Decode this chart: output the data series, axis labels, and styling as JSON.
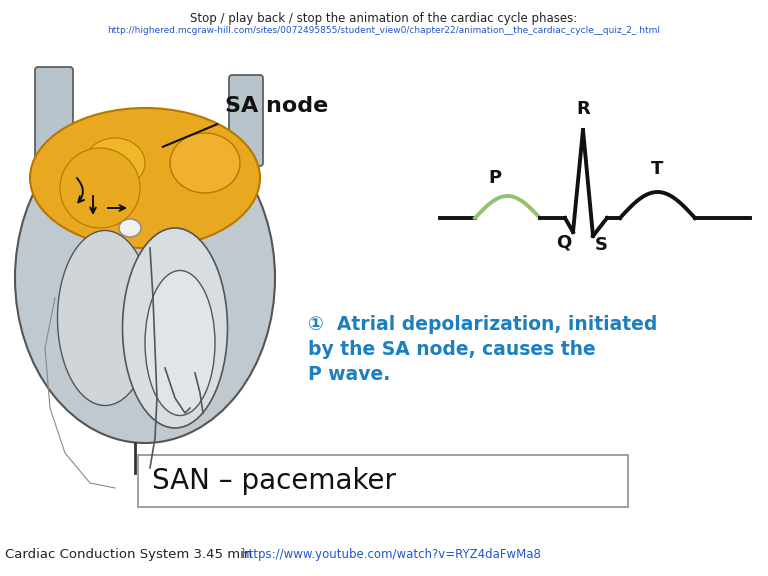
{
  "background_color": "#ffffff",
  "top_text": "Stop / play back / stop the animation of the cardiac cycle phases:",
  "top_link": "http://highered.mcgraw-hill.com/sites/0072495855/student_view0/chapter22/animation__the_cardiac_cycle__quiz_2_.html",
  "title_main": "Cardiac Conduction System 3.45 min",
  "title_link": "https://www.youtube.com/watch?v=RYZ4daFwMa8",
  "san_box_text": "SAN – pacemaker",
  "annotation_line1": "①  Atrial depolarization, initiated",
  "annotation_line2": "by the SA node, causes the",
  "annotation_line3": "P wave.",
  "annotation_color": "#1c7fbf",
  "ecg_color_main": "#111111",
  "ecg_color_p": "#90c070",
  "label_R": "R",
  "label_P": "P",
  "label_Q": "Q",
  "label_S": "S",
  "label_T": "T",
  "sa_node_label": "SA node",
  "heart_outer_color": "#c0c8d0",
  "heart_inner_color": "#d8dde2",
  "heart_edge_color": "#555555",
  "atria_color": "#e8a820",
  "atria_edge": "#b87800",
  "sa_bright_color": "#f0b030",
  "aorta_color": "#b8c4cc",
  "septum_color": "#c8ced4"
}
